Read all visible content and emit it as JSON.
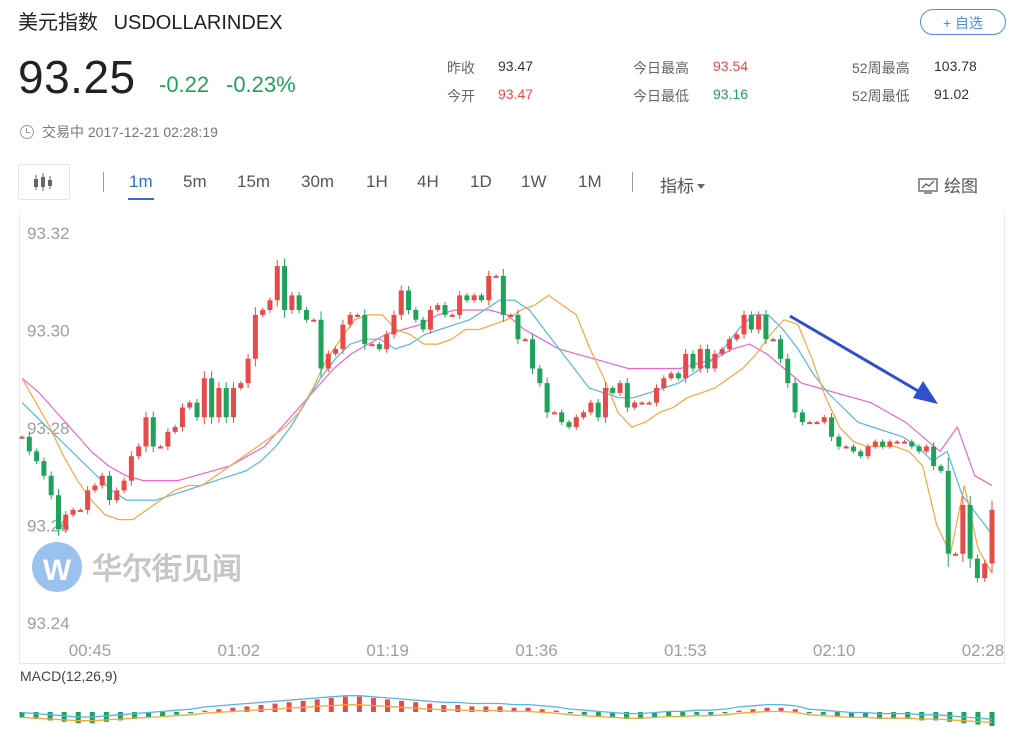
{
  "header": {
    "name_cn": "美元指数",
    "symbol": "USDOLLARINDEX",
    "watch_button": "+ 自选"
  },
  "quote": {
    "price": "93.25",
    "change": "-0.22",
    "change_pct": "-0.23%",
    "status": "交易中 2017-12-21 02:28:19"
  },
  "stats": [
    {
      "label": "昨收",
      "value": "93.47",
      "color": "#333333"
    },
    {
      "label": "今开",
      "value": "93.47",
      "color": "#e84a4a"
    },
    {
      "label": "今日最高",
      "value": "93.54",
      "color": "#e84a4a"
    },
    {
      "label": "今日最低",
      "value": "93.16",
      "color": "#1fa35a"
    },
    {
      "label": "52周最高",
      "value": "103.78",
      "color": "#333333"
    },
    {
      "label": "52周最低",
      "value": "91.02",
      "color": "#333333"
    }
  ],
  "toolbar": {
    "timeframes": [
      "1m",
      "5m",
      "15m",
      "30m",
      "1H",
      "4H",
      "1D",
      "1W",
      "1M"
    ],
    "active": "1m",
    "indicator_label": "指标",
    "draw_label": "绘图"
  },
  "watermark": "华尔街见闻",
  "colors": {
    "up": "#e84a4a",
    "down": "#1fa35a",
    "ma_fast": "#f5a742",
    "ma_mid": "#5ab4e8",
    "ma_slow": "#ee66cc",
    "arrow": "#2f4fcf",
    "accent": "#2a6fd6"
  },
  "chart_data": {
    "type": "candlestick",
    "title": "",
    "xlabel": "",
    "ylabel": "",
    "ylim": [
      93.24,
      93.32
    ],
    "y_ticks": [
      "93.32",
      "93.30",
      "93.28",
      "93.26",
      "93.24"
    ],
    "x_ticks": [
      "00:45",
      "01:02",
      "01:19",
      "01:36",
      "01:53",
      "02:10",
      "02:28"
    ],
    "time_range": [
      "00:45",
      "02:28"
    ],
    "close": [
      93.278,
      93.275,
      93.273,
      93.27,
      93.266,
      93.259,
      93.262,
      93.263,
      93.263,
      93.267,
      93.268,
      93.27,
      93.265,
      93.267,
      93.269,
      93.274,
      93.276,
      93.282,
      93.276,
      93.276,
      93.279,
      93.28,
      93.284,
      93.285,
      93.282,
      93.29,
      93.282,
      93.288,
      93.282,
      93.288,
      93.289,
      93.294,
      93.303,
      93.304,
      93.306,
      93.313,
      93.304,
      93.307,
      93.304,
      93.302,
      93.302,
      93.292,
      93.295,
      93.296,
      93.301,
      93.303,
      93.303,
      93.297,
      93.297,
      93.296,
      93.299,
      93.303,
      93.308,
      93.304,
      93.302,
      93.3,
      93.304,
      93.305,
      93.303,
      93.303,
      93.307,
      93.306,
      93.307,
      93.306,
      93.311,
      93.311,
      93.303,
      93.303,
      93.298,
      93.298,
      93.292,
      93.289,
      93.283,
      93.283,
      93.281,
      93.28,
      93.282,
      93.283,
      93.285,
      93.282,
      93.288,
      93.287,
      93.289,
      93.284,
      93.285,
      93.285,
      93.285,
      93.288,
      93.29,
      93.291,
      93.29,
      93.295,
      93.292,
      93.296,
      93.292,
      93.295,
      93.296,
      93.298,
      93.299,
      93.303,
      93.3,
      93.303,
      93.298,
      93.298,
      93.294,
      93.289,
      93.283,
      93.281,
      93.281,
      93.281,
      93.282,
      93.278,
      93.276,
      93.276,
      93.275,
      93.274,
      93.276,
      93.277,
      93.276,
      93.277,
      93.277,
      93.277,
      93.276,
      93.275,
      93.276,
      93.272,
      93.271,
      93.254,
      93.254,
      93.264,
      93.253,
      93.249,
      93.252,
      93.263
    ],
    "ma_fast": [
      93.29,
      93.285,
      93.28,
      93.274,
      93.269,
      93.265,
      93.262,
      93.261,
      93.261,
      93.263,
      93.265,
      93.267,
      93.268,
      93.268,
      93.27,
      93.272,
      93.274,
      93.276,
      93.278,
      93.28,
      93.283,
      93.288,
      93.294,
      93.298,
      93.302,
      93.303,
      93.303,
      93.3,
      93.299,
      93.297,
      93.297,
      93.298,
      93.3,
      93.3,
      93.301,
      93.302,
      93.304,
      93.305,
      93.307,
      93.305,
      93.303,
      93.296,
      93.29,
      93.283,
      93.28,
      93.281,
      93.283,
      93.284,
      93.286,
      93.287,
      93.288,
      93.29,
      93.292,
      93.295,
      93.299,
      93.302,
      93.301,
      93.294,
      93.286,
      93.28,
      93.277,
      93.276,
      93.276,
      93.276,
      93.275,
      93.272,
      93.26,
      93.254,
      93.268,
      93.255,
      93.25
    ],
    "ma_mid": [
      93.285,
      93.282,
      93.279,
      93.276,
      93.273,
      93.27,
      93.267,
      93.265,
      93.265,
      93.265,
      93.266,
      93.267,
      93.268,
      93.269,
      93.27,
      93.271,
      93.273,
      93.276,
      93.28,
      93.285,
      93.29,
      93.294,
      93.297,
      93.298,
      93.298,
      93.296,
      93.297,
      93.299,
      93.3,
      93.301,
      93.302,
      93.304,
      93.306,
      93.306,
      93.304,
      93.3,
      93.296,
      93.292,
      93.288,
      93.287,
      93.286,
      93.286,
      93.287,
      93.288,
      93.289,
      93.291,
      93.293,
      93.296,
      93.3,
      93.303,
      93.303,
      93.3,
      93.296,
      93.291,
      93.287,
      93.284,
      93.281,
      93.28,
      93.279,
      93.278,
      93.276,
      93.273,
      93.275,
      93.266,
      93.262,
      93.258
    ],
    "ma_slow": [
      93.29,
      93.287,
      93.283,
      93.279,
      93.275,
      93.272,
      93.27,
      93.269,
      93.269,
      93.269,
      93.27,
      93.271,
      93.272,
      93.274,
      93.276,
      93.28,
      93.284,
      93.288,
      93.292,
      93.295,
      93.297,
      93.299,
      93.3,
      93.301,
      93.303,
      93.304,
      93.304,
      93.304,
      93.303,
      93.3,
      93.298,
      93.296,
      93.295,
      93.294,
      93.293,
      93.292,
      93.292,
      93.292,
      93.292,
      93.293,
      93.294,
      93.296,
      93.297,
      93.295,
      93.292,
      93.289,
      93.288,
      93.287,
      93.286,
      93.285,
      93.283,
      93.281,
      93.278,
      93.275,
      93.28,
      93.27,
      93.268
    ],
    "macd_label": "MACD(12,26,9)",
    "macd_hist": [
      -0.4,
      -0.5,
      -0.6,
      -0.7,
      -0.8,
      -0.8,
      -0.7,
      -0.6,
      -0.5,
      -0.4,
      -0.3,
      -0.2,
      -0.1,
      0.1,
      0.2,
      0.3,
      0.4,
      0.5,
      0.6,
      0.7,
      0.8,
      0.9,
      1.0,
      1.1,
      1.1,
      1.0,
      0.9,
      0.8,
      0.7,
      0.6,
      0.5,
      0.5,
      0.4,
      0.4,
      0.4,
      0.3,
      0.3,
      0.2,
      0.1,
      -0.1,
      -0.2,
      -0.3,
      -0.4,
      -0.5,
      -0.5,
      -0.4,
      -0.3,
      -0.3,
      -0.2,
      -0.2,
      -0.1,
      0.1,
      0.2,
      0.3,
      0.3,
      0.2,
      -0.1,
      -0.2,
      -0.3,
      -0.4,
      -0.4,
      -0.5,
      -0.5,
      -0.5,
      -0.6,
      -0.6,
      -0.7,
      -0.8,
      -0.9,
      -1.0
    ],
    "annotation": "downward arrow (02:00-02:18)"
  }
}
